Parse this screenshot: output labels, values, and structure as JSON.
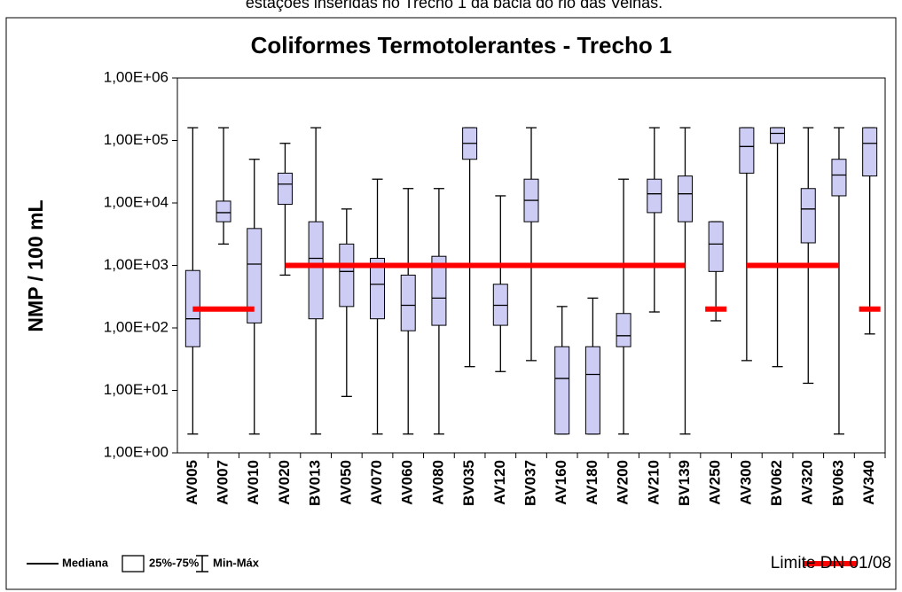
{
  "caption": "estações inseridas no Trecho 1 da bacia do rio das Velhas.",
  "chart_data": {
    "type": "box",
    "title": "Coliformes Termotolerantes - Trecho 1",
    "y_label": "NMP / 100 mL",
    "log_scale": true,
    "ylim": [
      1,
      1000000
    ],
    "yticks": [
      {
        "value": 1,
        "label": "1,00E+00"
      },
      {
        "value": 10,
        "label": "1,00E+01"
      },
      {
        "value": 100,
        "label": "1,00E+02"
      },
      {
        "value": 1000,
        "label": "1,00E+03"
      },
      {
        "value": 10000,
        "label": "1,00E+04"
      },
      {
        "value": 100000,
        "label": "1,00E+05"
      },
      {
        "value": 1000000,
        "label": "1,00E+06"
      }
    ],
    "categories": [
      "AV005",
      "AV007",
      "AV010",
      "AV020",
      "BV013",
      "AV050",
      "AV070",
      "AV060",
      "AV080",
      "BV035",
      "AV120",
      "BV037",
      "AV160",
      "AV180",
      "AV200",
      "AV210",
      "BV139",
      "AV250",
      "AV300",
      "BV062",
      "AV320",
      "BV063",
      "AV340"
    ],
    "box_color": "#ccccf5",
    "min": [
      2,
      2200,
      2,
      700,
      2,
      8,
      2,
      2,
      2,
      24,
      20,
      30,
      2,
      2,
      2,
      180,
      2,
      130,
      30,
      24,
      13,
      2,
      80
    ],
    "q1": [
      50,
      5000,
      120,
      9500,
      140,
      220,
      140,
      90,
      110,
      50000,
      110,
      5000,
      2,
      2,
      50,
      7000,
      5000,
      800,
      30000,
      90000,
      2300,
      13000,
      27000
    ],
    "median": [
      140,
      7000,
      1050,
      20000,
      1300,
      800,
      500,
      230,
      300,
      90000,
      230,
      11000,
      15.5,
      18,
      75,
      14000,
      14000,
      2200,
      80000,
      130000,
      8000,
      28000,
      90000
    ],
    "q3": [
      830,
      10700,
      3900,
      30000,
      5000,
      2200,
      1300,
      700,
      1400,
      160000,
      500,
      24000,
      50,
      50,
      170,
      24000,
      27000,
      5000,
      160000,
      160000,
      17000,
      50000,
      160000
    ],
    "max": [
      160000,
      160000,
      50000,
      90000,
      160000,
      8000,
      24000,
      17000,
      17000,
      160000,
      13000,
      160000,
      220,
      300,
      24000,
      160000,
      160000,
      5000,
      160000,
      160000,
      160000,
      160000,
      160000
    ],
    "limit": {
      "name": "Limite DN 01/08",
      "color": "#ff0000",
      "values": [
        200,
        200,
        200,
        1000,
        1000,
        1000,
        1000,
        1000,
        1000,
        1000,
        1000,
        1000,
        1000,
        1000,
        1000,
        1000,
        1000,
        200,
        1000,
        1000,
        1000,
        1000,
        200
      ]
    },
    "legend": {
      "median": "Mediana",
      "box": "25%-75%",
      "range": "Min-Máx"
    }
  }
}
